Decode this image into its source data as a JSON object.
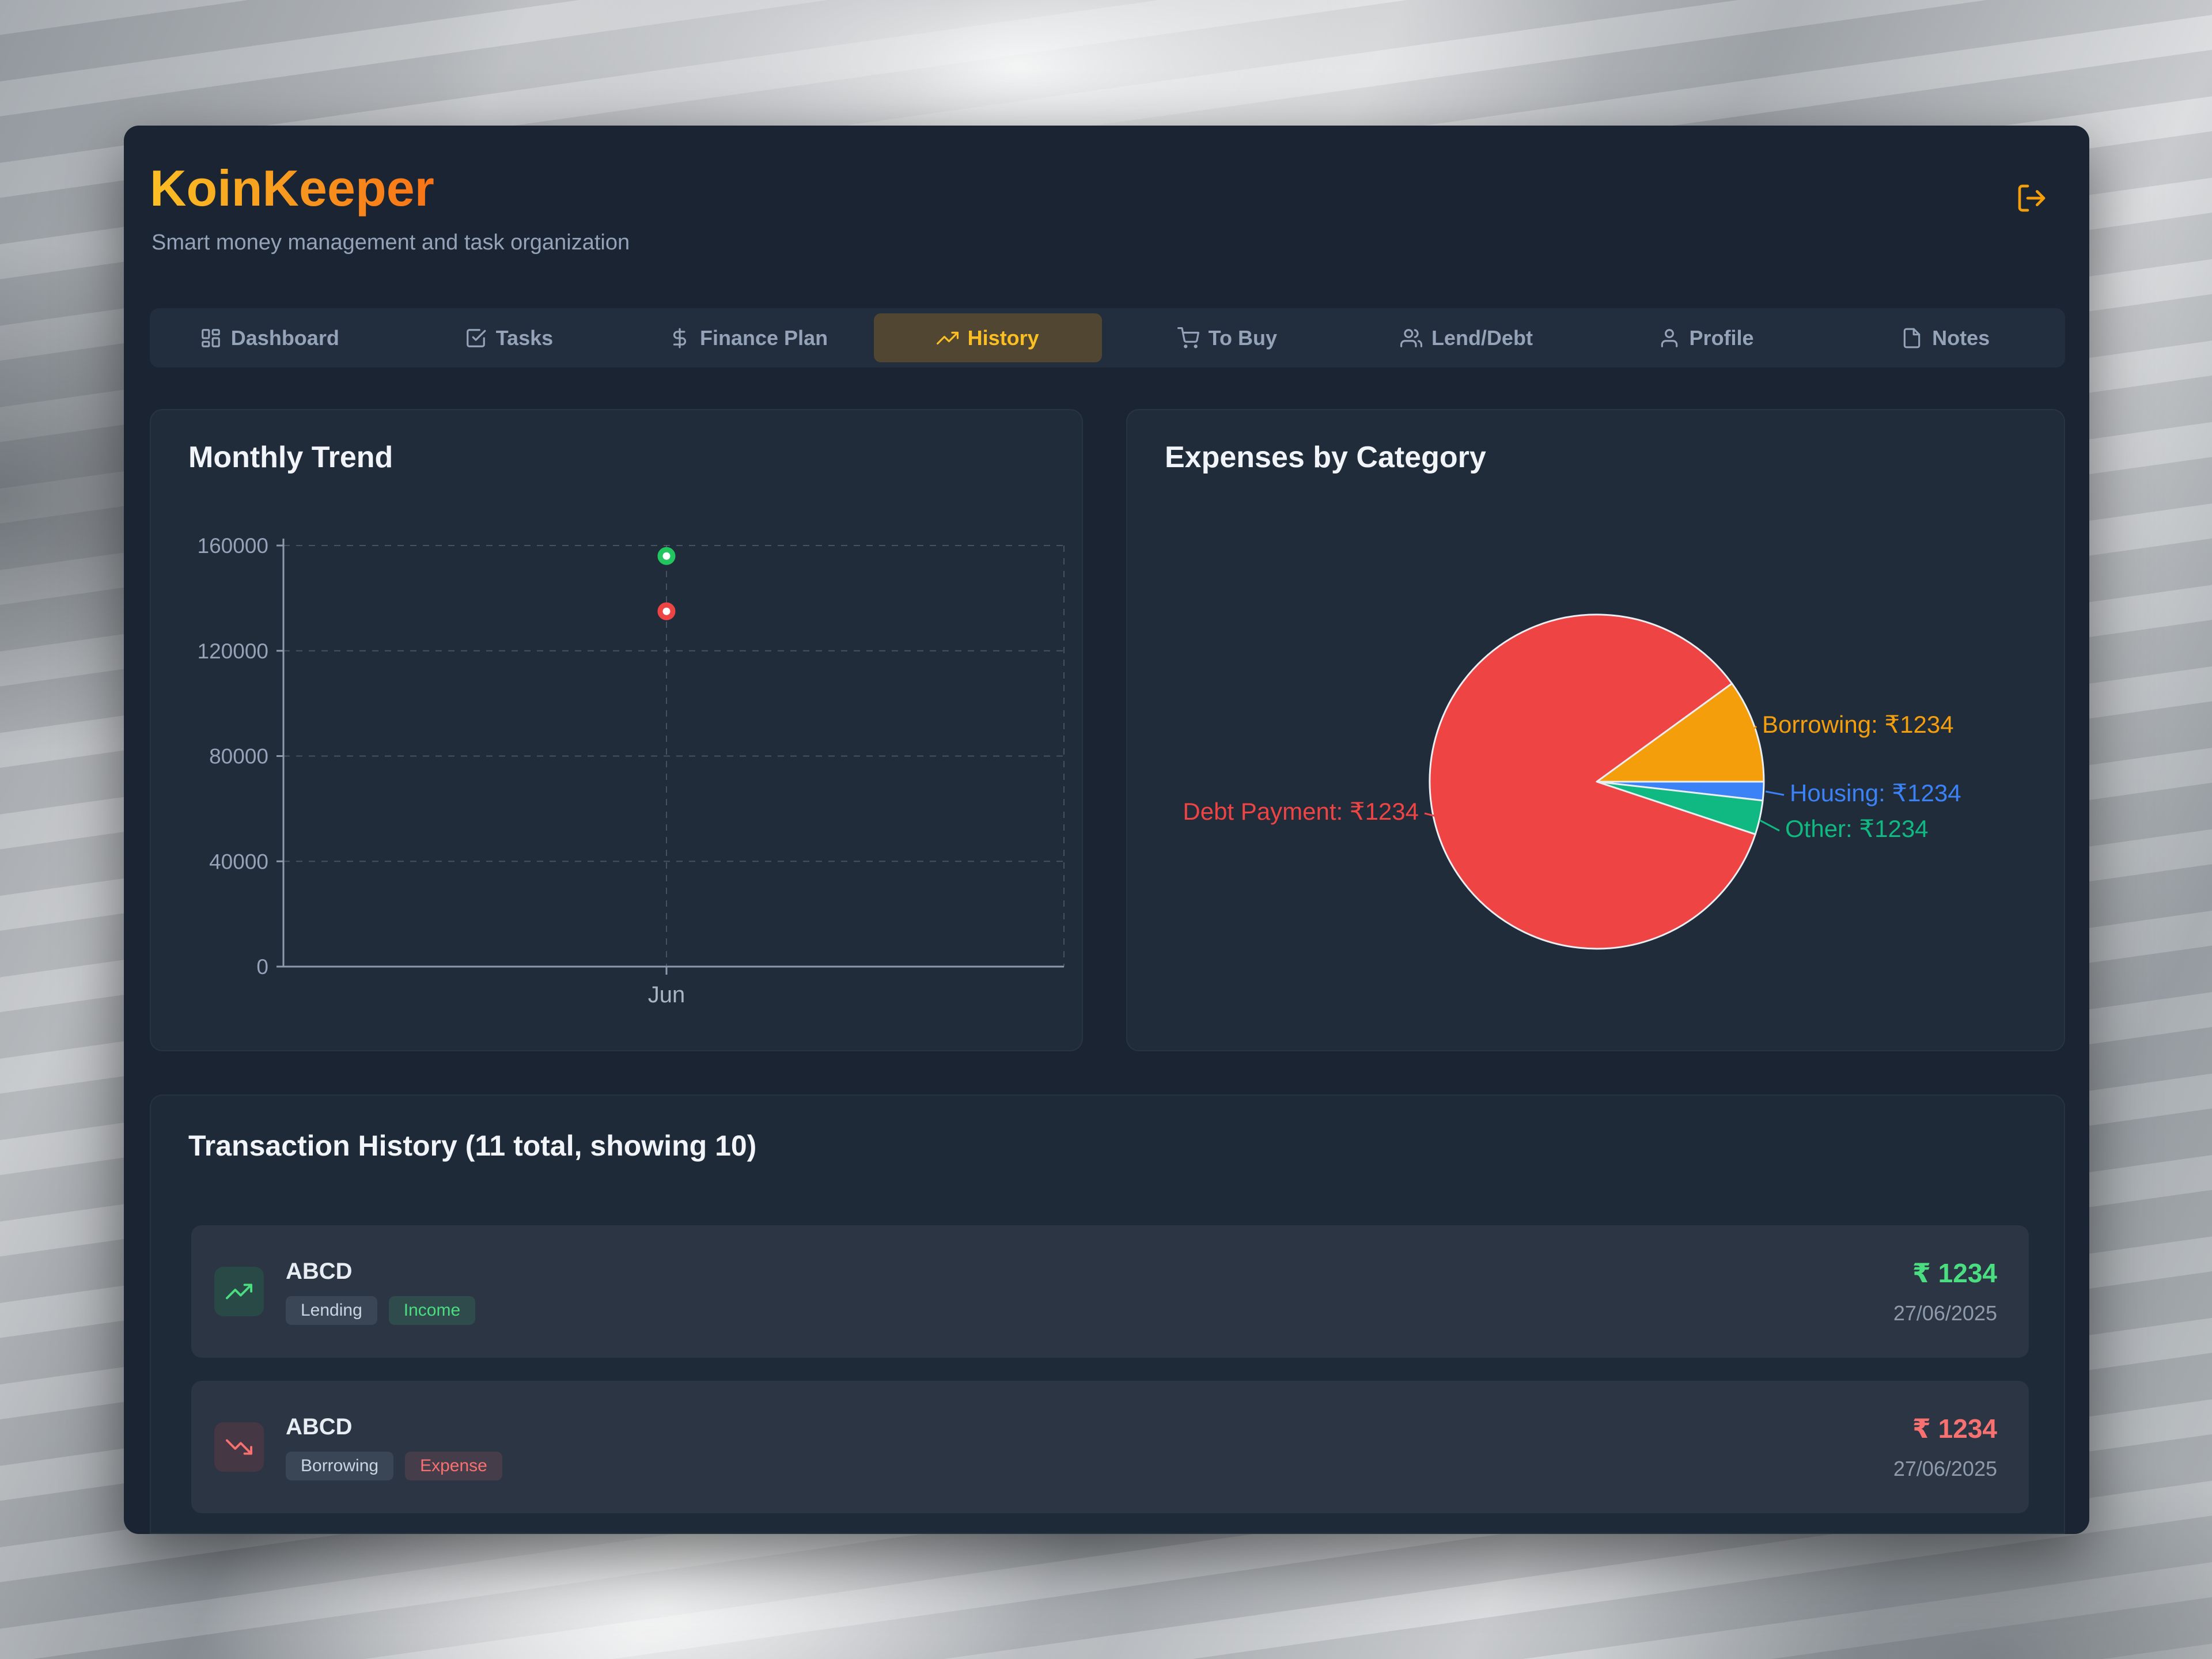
{
  "app": {
    "title": "KoinKeeper",
    "subtitle": "Smart money management and task organization"
  },
  "nav": {
    "tabs": [
      {
        "label": "Dashboard",
        "icon": "dashboard-grid-icon",
        "active": false
      },
      {
        "label": "Tasks",
        "icon": "check-square-icon",
        "active": false
      },
      {
        "label": "Finance Plan",
        "icon": "dollar-icon",
        "active": false
      },
      {
        "label": "History",
        "icon": "trending-up-icon",
        "active": true
      },
      {
        "label": "To Buy",
        "icon": "cart-icon",
        "active": false
      },
      {
        "label": "Lend/Debt",
        "icon": "users-icon",
        "active": false
      },
      {
        "label": "Profile",
        "icon": "user-icon",
        "active": false
      },
      {
        "label": "Notes",
        "icon": "file-icon",
        "active": false
      }
    ]
  },
  "chart_data": [
    {
      "type": "scatter",
      "title": "Monthly Trend",
      "x": [
        "Jun"
      ],
      "series": [
        {
          "name": "Income",
          "color": "#22c55e",
          "values": [
            156000
          ]
        },
        {
          "name": "Expense",
          "color": "#ef4444",
          "values": [
            135000
          ]
        }
      ],
      "ylim": [
        0,
        160000
      ],
      "yticks": [
        0,
        40000,
        80000,
        120000,
        160000
      ],
      "grid": true,
      "legend": "none"
    },
    {
      "type": "pie",
      "title": "Expenses by Category",
      "start_deg": 54,
      "slices": [
        {
          "label": "Borrowing",
          "value_display": "₹1234",
          "pct": 10.0,
          "color": "#f59e0b"
        },
        {
          "label": "Housing",
          "value_display": "₹1234",
          "pct": 1.8,
          "color": "#3b82f6"
        },
        {
          "label": "Other",
          "value_display": "₹1234",
          "pct": 3.3,
          "color": "#10b981"
        },
        {
          "label": "Debt Payment",
          "value_display": "₹1234",
          "pct": 84.9,
          "color": "#ef4444"
        }
      ]
    }
  ],
  "transactions": {
    "title": "Transaction History (11 total, showing 10)",
    "rows": [
      {
        "name": "ABCD",
        "category": "Lending",
        "type": "Income",
        "amount": "₹ 1234",
        "date": "27/06/2025"
      },
      {
        "name": "ABCD",
        "category": "Borrowing",
        "type": "Expense",
        "amount": "₹ 1234",
        "date": "27/06/2025"
      }
    ]
  },
  "colors": {
    "accent": "#f59e0b",
    "brand_gradient": [
      "#fbbf24",
      "#f97316"
    ],
    "income_text": "#4ade80",
    "expense_text": "#f87171",
    "pie": {
      "red": "#ef4444",
      "orange": "#f59e0b",
      "blue": "#3b82f6",
      "green": "#10b981"
    }
  }
}
